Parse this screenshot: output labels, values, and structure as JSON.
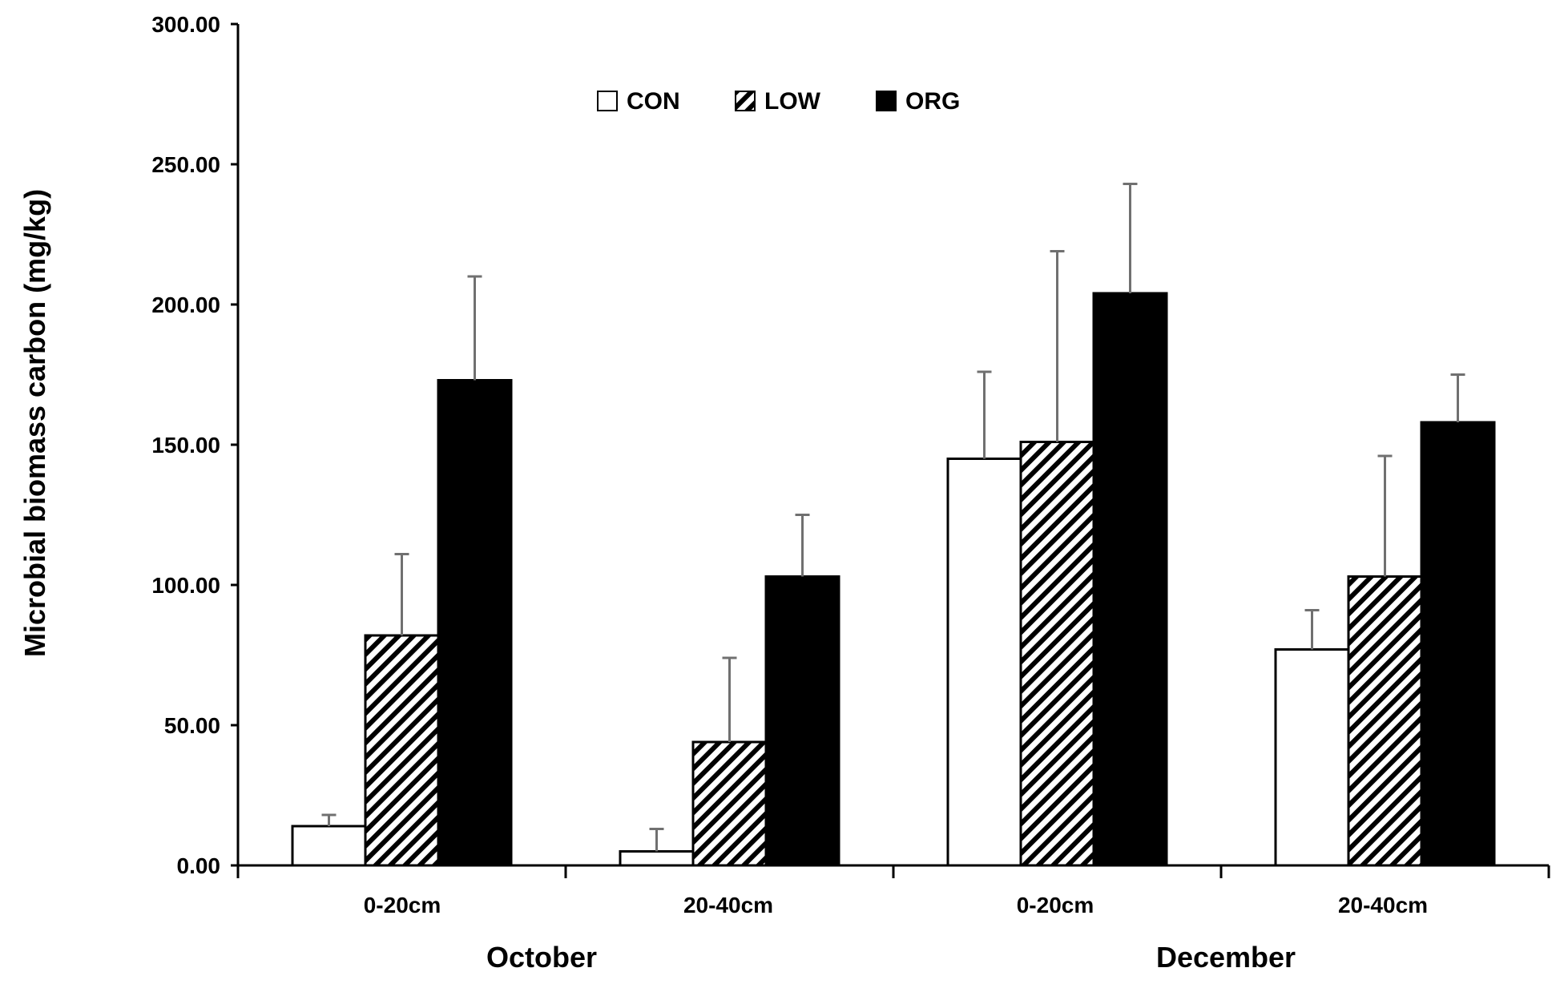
{
  "chart_data": {
    "type": "bar",
    "title": "",
    "ylabel": "Microbial biomass carbon (mg/kg)",
    "xlabel": "",
    "ylim": [
      0,
      300
    ],
    "yticks": [
      "0.00",
      "50.00",
      "100.00",
      "150.00",
      "200.00",
      "250.00",
      "300.00"
    ],
    "ytick_values": [
      0,
      50,
      100,
      150,
      200,
      250,
      300
    ],
    "categories": [
      "0-20cm",
      "20-40cm",
      "0-20cm",
      "20-40cm"
    ],
    "groups": [
      {
        "label": "October",
        "span": [
          0,
          1
        ]
      },
      {
        "label": "December",
        "span": [
          2,
          3
        ]
      }
    ],
    "legend_position": "top-center",
    "series": [
      {
        "name": "CON",
        "fill": "white",
        "values": [
          14,
          5,
          145,
          77
        ],
        "errors": [
          4,
          8,
          31,
          14
        ]
      },
      {
        "name": "LOW",
        "fill": "hatched",
        "values": [
          82,
          44,
          151,
          103
        ],
        "errors": [
          29,
          30,
          68,
          43
        ]
      },
      {
        "name": "ORG",
        "fill": "black",
        "values": [
          173,
          103,
          204,
          158
        ],
        "errors": [
          37,
          22,
          39,
          17
        ]
      }
    ],
    "colors": {
      "bar_stroke": "#000000",
      "error_bar": "#707070",
      "solid": "#000000",
      "empty": "#ffffff"
    }
  }
}
